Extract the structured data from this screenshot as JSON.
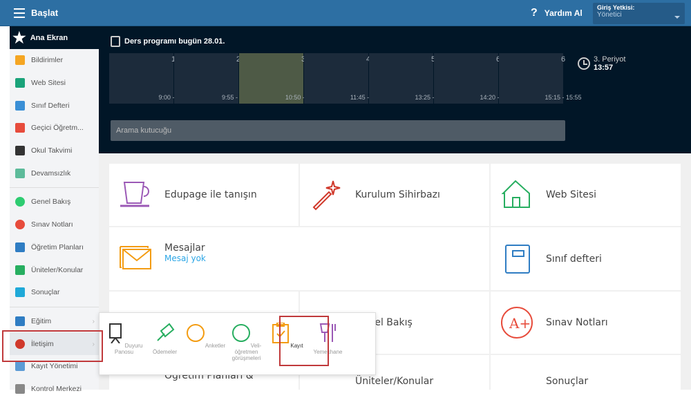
{
  "header": {
    "title": "Başlat",
    "help": "Yardım Al",
    "help_icon": "?",
    "role_label": "Giriş Yetkisi:",
    "role_value": "Yönetici"
  },
  "sidebar": {
    "home": "Ana Ekran",
    "items": [
      {
        "label": "Bildirimler",
        "color": "#f5a623"
      },
      {
        "label": "Web Sitesi",
        "color": "#1aa37a"
      },
      {
        "label": "Sınıf Defteri",
        "color": "#3a8fd6"
      },
      {
        "label": "Geçici Öğretm...",
        "color": "#e74c3c"
      },
      {
        "label": "Okul Takvimi",
        "color": "#333333"
      },
      {
        "label": "Devamsızlık",
        "color": "#5dbb9a"
      },
      {
        "label": "Genel Bakış",
        "color": "#2ecc71"
      },
      {
        "label": "Sınav Notları",
        "color": "#e74c3c"
      },
      {
        "label": "Öğretim Planları",
        "color": "#2f7dc3"
      },
      {
        "label": "Üniteler/Konular",
        "color": "#27ae60"
      },
      {
        "label": "Sonuçlar",
        "color": "#1fa9d8"
      },
      {
        "label": "Eğitim",
        "color": "#2f7dc3"
      },
      {
        "label": "İletişim",
        "color": "#d0392b"
      },
      {
        "label": "Kayıt Yönetimi",
        "color": "#5b9bd5"
      },
      {
        "label": "Kontrol Merkezi",
        "color": "#888888"
      }
    ]
  },
  "schedule": {
    "title": "Ders programı bugün 28.01.",
    "periods": [
      {
        "n": "1",
        "time": "9:00 - 9:40"
      },
      {
        "n": "2",
        "time": "9:55 - 10:35"
      },
      {
        "n": "3",
        "time": "10:50 - 11:30"
      },
      {
        "n": "4",
        "time": "11:45 - 12:25"
      },
      {
        "n": "5",
        "time": "13:25 - 14:05"
      },
      {
        "n": "6",
        "time": "14:20 - 15:00"
      },
      {
        "n": "6",
        "time": "15:15 - 15:55"
      }
    ],
    "current_period": "3. Periyot",
    "time": "13:57"
  },
  "search": {
    "placeholder": "Arama kutucuğu"
  },
  "tiles": [
    {
      "label": "Edupage ile tanışın"
    },
    {
      "label": "Kurulum Sihirbazı"
    },
    {
      "label": "Web Sitesi"
    },
    {
      "label": "Mesajlar",
      "sub": "Mesaj yok"
    },
    {
      "label": "Sınıf defteri"
    },
    {
      "label": "Genel Bakış"
    },
    {
      "label": "Sınav Notları"
    },
    {
      "label": "Öğretim Planları &"
    },
    {
      "label": "Üniteler/Konular"
    },
    {
      "label": "Sonuçlar"
    }
  ],
  "popup": {
    "items": [
      {
        "label": "Duyuru Panosu"
      },
      {
        "label": "Ödemeler"
      },
      {
        "label": "Anketler"
      },
      {
        "label": "Veli-öğretmen görüşmeleri"
      },
      {
        "label": "Kayıt"
      },
      {
        "label": "Yemekhane"
      }
    ]
  }
}
